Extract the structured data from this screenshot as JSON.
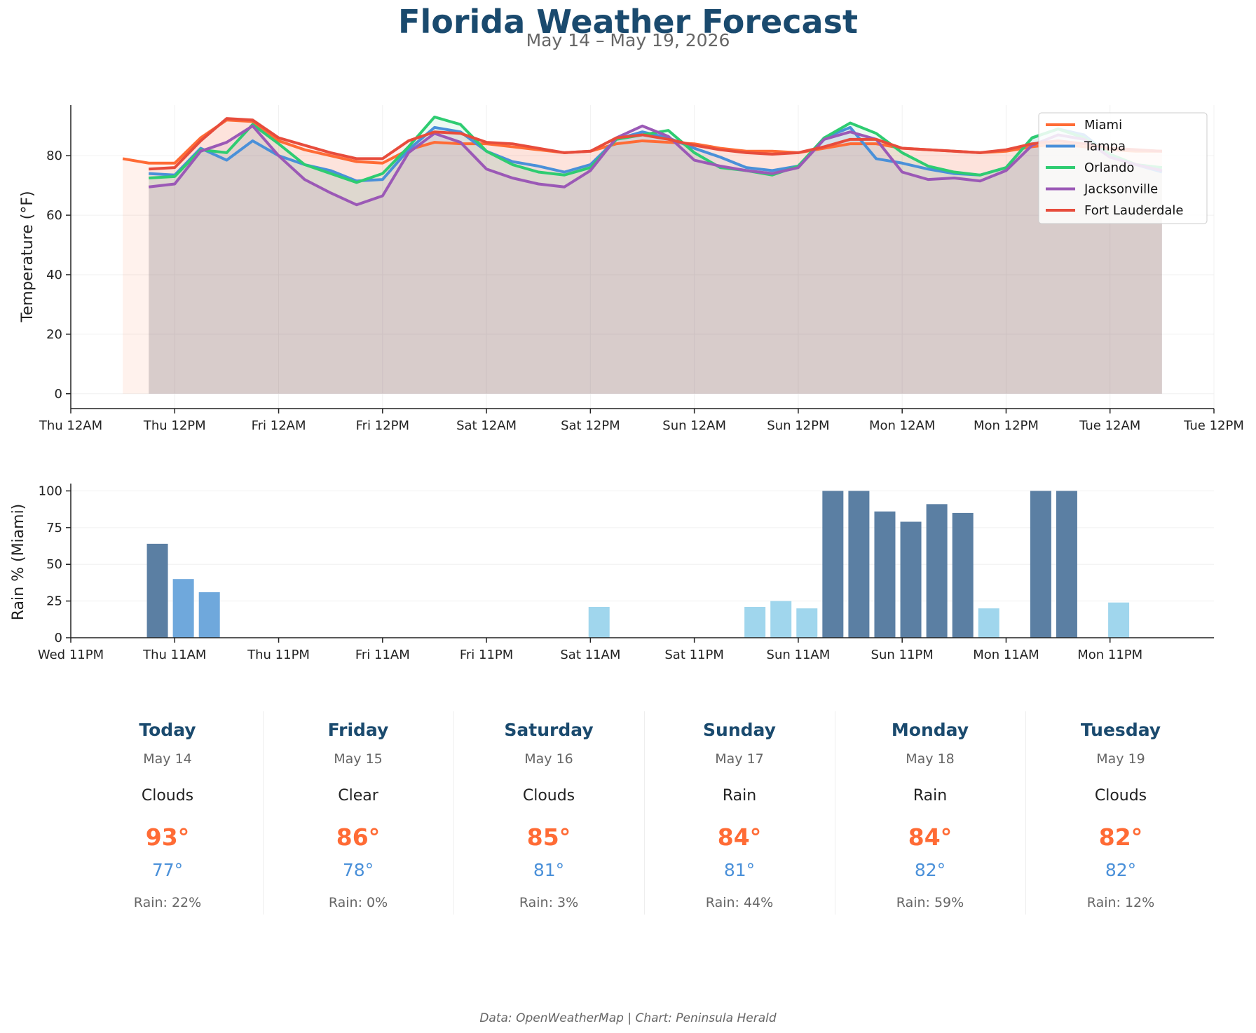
{
  "header": {
    "title": "Florida Weather Forecast",
    "subtitle": "May 14 – May 19, 2026"
  },
  "chart_data": [
    {
      "type": "line",
      "ylabel": "Temperature (°F)",
      "ylim": [
        -5,
        97
      ],
      "yticks": [
        0,
        20,
        40,
        60,
        80
      ],
      "x_unit": "hours since Thu 12AM",
      "xlim": [
        0,
        132
      ],
      "xticks": [
        {
          "label": "Thu 12AM",
          "h": 0
        },
        {
          "label": "Thu 12PM",
          "h": 12
        },
        {
          "label": "Fri 12AM",
          "h": 24
        },
        {
          "label": "Fri 12PM",
          "h": 36
        },
        {
          "label": "Sat 12AM",
          "h": 48
        },
        {
          "label": "Sat 12PM",
          "h": 60
        },
        {
          "label": "Sun 12AM",
          "h": 72
        },
        {
          "label": "Sun 12PM",
          "h": 84
        },
        {
          "label": "Mon 12AM",
          "h": 96
        },
        {
          "label": "Mon 12PM",
          "h": 108
        },
        {
          "label": "Tue 12AM",
          "h": 120
        },
        {
          "label": "Tue 12PM",
          "h": 132
        }
      ],
      "grid": true,
      "legend": "top-right",
      "area_fill": true,
      "series": [
        {
          "name": "Miami",
          "color": "#ff6b35",
          "start_h": 6,
          "step_h": 3,
          "values": [
            79,
            77.5,
            77.5,
            86,
            92,
            91.5,
            85,
            82,
            80,
            78,
            77.5,
            82,
            84.5,
            84,
            84,
            83,
            82,
            81,
            81.5,
            84,
            85,
            84.5,
            84,
            82.5,
            81.5,
            81.5,
            81,
            82.5,
            84,
            84,
            82.5,
            82,
            81.5,
            81,
            81.5,
            83,
            84,
            83,
            82,
            81.5,
            81.5
          ]
        },
        {
          "name": "Tampa",
          "color": "#4a90d9",
          "start_h": 9,
          "step_h": 3,
          "values": [
            74,
            73.5,
            82.5,
            78.5,
            85,
            80,
            77,
            75,
            71.5,
            72,
            82,
            89.5,
            88,
            81.5,
            78,
            76.5,
            74.5,
            77,
            85.5,
            88,
            86,
            82.5,
            79.5,
            76,
            75,
            76.5,
            86,
            89.5,
            79,
            77.5,
            75.5,
            74,
            73.5,
            76,
            86,
            89,
            87,
            80,
            77,
            74.5
          ]
        },
        {
          "name": "Orlando",
          "color": "#2ecc71",
          "start_h": 9,
          "step_h": 3,
          "values": [
            72.5,
            73,
            82,
            81,
            90.5,
            84,
            77,
            74,
            71,
            74,
            83,
            93,
            90.5,
            81.5,
            77,
            74.5,
            73.5,
            76,
            85.5,
            87,
            88.5,
            81,
            76,
            75,
            73.5,
            76.5,
            86,
            91,
            87.5,
            81,
            76.5,
            74.5,
            73.5,
            76,
            86,
            89,
            86,
            80.5,
            77,
            76
          ]
        },
        {
          "name": "Jacksonville",
          "color": "#9b59b6",
          "start_h": 9,
          "step_h": 3,
          "values": [
            69.5,
            70.5,
            81.5,
            84.5,
            90,
            80,
            72,
            67.5,
            63.5,
            66.5,
            81,
            87.5,
            84.5,
            75.5,
            72.5,
            70.5,
            69.5,
            75,
            86,
            90,
            86.5,
            78.5,
            76.5,
            75,
            74,
            76,
            85.5,
            88,
            85.5,
            74.5,
            72,
            72.5,
            71.5,
            75,
            83.5,
            87,
            85.5,
            79.5,
            77,
            75
          ]
        },
        {
          "name": "Fort Lauderdale",
          "color": "#e74c3c",
          "start_h": 9,
          "step_h": 3,
          "values": [
            75.5,
            76,
            85,
            92.5,
            92,
            86,
            83.5,
            81,
            79,
            79,
            85,
            88,
            87.5,
            84.5,
            84,
            82.5,
            81,
            81.5,
            86,
            87,
            85.5,
            83.5,
            82,
            81,
            80.5,
            81,
            83,
            85.5,
            85.5,
            82.5,
            82,
            81.5,
            81,
            82,
            84,
            85,
            84,
            82.5,
            82,
            81.5
          ]
        }
      ]
    },
    {
      "type": "bar",
      "ylabel": "Rain % (Miami)",
      "ylim": [
        0,
        105
      ],
      "yticks": [
        0,
        25,
        50,
        75,
        100
      ],
      "x_unit": "hours since Wed 11PM",
      "xlim": [
        0,
        132
      ],
      "xticks": [
        {
          "label": "Wed 11PM",
          "h": 0
        },
        {
          "label": "Thu 11AM",
          "h": 12
        },
        {
          "label": "Thu 11PM",
          "h": 24
        },
        {
          "label": "Fri 11AM",
          "h": 36
        },
        {
          "label": "Fri 11PM",
          "h": 48
        },
        {
          "label": "Sat 11AM",
          "h": 60
        },
        {
          "label": "Sat 11PM",
          "h": 72
        },
        {
          "label": "Sun 11AM",
          "h": 84
        },
        {
          "label": "Sun 11PM",
          "h": 96
        },
        {
          "label": "Mon 11AM",
          "h": 108
        },
        {
          "label": "Mon 11PM",
          "h": 120
        }
      ],
      "grid": true,
      "bars": [
        {
          "h": 10,
          "value": 64,
          "color": "#5b7fa3"
        },
        {
          "h": 13,
          "value": 40,
          "color": "#6fa8dc"
        },
        {
          "h": 16,
          "value": 31,
          "color": "#6fa8dc"
        },
        {
          "h": 61,
          "value": 21,
          "color": "#a0d6ed"
        },
        {
          "h": 79,
          "value": 21,
          "color": "#a0d6ed"
        },
        {
          "h": 82,
          "value": 25,
          "color": "#a0d6ed"
        },
        {
          "h": 85,
          "value": 20,
          "color": "#a0d6ed"
        },
        {
          "h": 88,
          "value": 100,
          "color": "#5b7fa3"
        },
        {
          "h": 91,
          "value": 100,
          "color": "#5b7fa3"
        },
        {
          "h": 94,
          "value": 86,
          "color": "#5b7fa3"
        },
        {
          "h": 97,
          "value": 79,
          "color": "#5b7fa3"
        },
        {
          "h": 100,
          "value": 91,
          "color": "#5b7fa3"
        },
        {
          "h": 103,
          "value": 85,
          "color": "#5b7fa3"
        },
        {
          "h": 106,
          "value": 20,
          "color": "#a0d6ed"
        },
        {
          "h": 112,
          "value": 100,
          "color": "#5b7fa3"
        },
        {
          "h": 115,
          "value": 100,
          "color": "#5b7fa3"
        },
        {
          "h": 121,
          "value": 24,
          "color": "#a0d6ed"
        }
      ]
    }
  ],
  "daily": [
    {
      "day": "Today",
      "date": "May 14",
      "condition": "Clouds",
      "high": "93°",
      "low": "77°",
      "rain": "Rain: 22%"
    },
    {
      "day": "Friday",
      "date": "May 15",
      "condition": "Clear",
      "high": "86°",
      "low": "78°",
      "rain": "Rain: 0%"
    },
    {
      "day": "Saturday",
      "date": "May 16",
      "condition": "Clouds",
      "high": "85°",
      "low": "81°",
      "rain": "Rain: 3%"
    },
    {
      "day": "Sunday",
      "date": "May 17",
      "condition": "Rain",
      "high": "84°",
      "low": "81°",
      "rain": "Rain: 44%"
    },
    {
      "day": "Monday",
      "date": "May 18",
      "condition": "Rain",
      "high": "84°",
      "low": "82°",
      "rain": "Rain: 59%"
    },
    {
      "day": "Tuesday",
      "date": "May 19",
      "condition": "Clouds",
      "high": "82°",
      "low": "82°",
      "rain": "Rain: 12%"
    }
  ],
  "footer": "Data: OpenWeatherMap | Chart: Peninsula Herald"
}
